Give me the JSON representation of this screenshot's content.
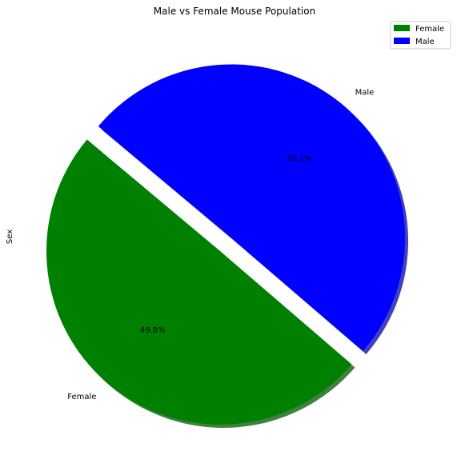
{
  "chart_data": {
    "type": "pie",
    "title": "Male vs Female Mouse Population",
    "ylabel": "Sex",
    "categories": [
      "Female",
      "Male"
    ],
    "values": [
      49.8,
      50.2
    ],
    "labels": [
      "49.8%",
      "50.2%"
    ],
    "colors": [
      "#008000",
      "#0000ff"
    ],
    "explode": [
      0,
      0.1
    ],
    "start_angle": 140,
    "shadow": true,
    "legend": {
      "position": "top-right",
      "entries": [
        "Female",
        "Male"
      ]
    }
  }
}
